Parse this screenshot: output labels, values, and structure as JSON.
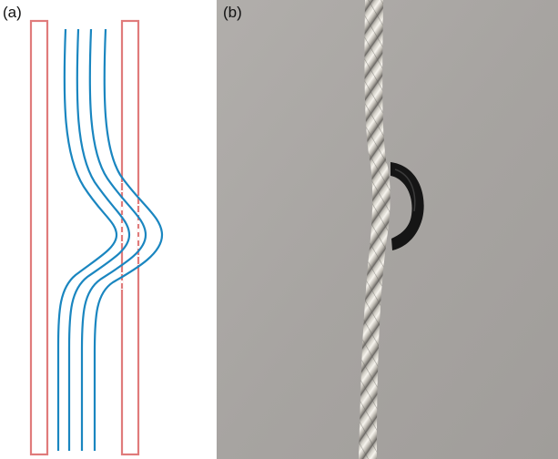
{
  "figure": {
    "panels": [
      {
        "label": "(a)",
        "content": "schematic"
      },
      {
        "label": "(b)",
        "content": "photograph"
      }
    ]
  },
  "schematic": {
    "wire_count": 4,
    "boundary_color": "#e07b7b",
    "wire_color": "#1a86c0",
    "icons": [
      "left-boundary-rect",
      "right-boundary-rect",
      "deflected-wires"
    ]
  },
  "photo": {
    "background_color": "#a8a5a2",
    "cable_color": "#c9c6bf",
    "ring_color": "#161616",
    "icons": [
      "braided-cable",
      "black-ring"
    ]
  }
}
